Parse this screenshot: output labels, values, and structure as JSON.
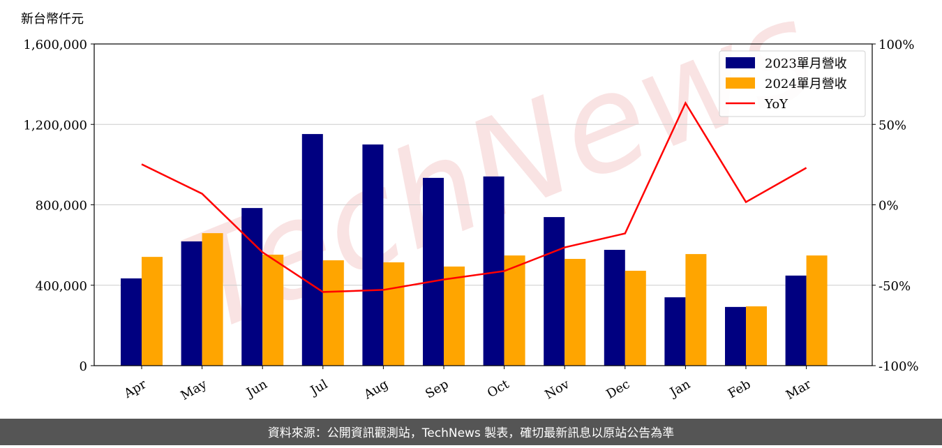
{
  "chart_data": {
    "type": "bar_line",
    "y_label": "新台幣仟元",
    "footer": "資料來源：公開資訊觀測站，TechNews 製表，確切最新訊息以原站公告為準",
    "watermark": "TechNews",
    "categories": [
      "Apr",
      "May",
      "Jun",
      "Jul",
      "Aug",
      "Sep",
      "Oct",
      "Nov",
      "Dec",
      "Jan",
      "Feb",
      "Mar"
    ],
    "series": [
      {
        "name": "2023單月營收",
        "color": "#000080",
        "type": "bar",
        "values": [
          434000,
          618000,
          784000,
          1152000,
          1100000,
          934000,
          941000,
          739000,
          576000,
          340000,
          292000,
          448000
        ]
      },
      {
        "name": "2024單月營收",
        "color": "#ffa500",
        "type": "bar",
        "values": [
          541000,
          659000,
          552000,
          524000,
          514000,
          493000,
          548000,
          531000,
          472000,
          555000,
          295000,
          548000
        ]
      },
      {
        "name": "YoY",
        "color": "#ff0000",
        "type": "line",
        "axis": "y2",
        "values": [
          25.2,
          6.9,
          -29.5,
          -54.2,
          -52.9,
          -46.4,
          -41.2,
          -26.5,
          -17.8,
          63.3,
          1.7,
          23
        ]
      }
    ],
    "ylim": [
      0,
      1600000
    ],
    "yticks": [
      {
        "value": 0,
        "label": "0"
      },
      {
        "value": 400000,
        "label": "400,000"
      },
      {
        "value": 800000,
        "label": "800,000"
      },
      {
        "value": 1200000,
        "label": "1,200,000"
      },
      {
        "value": 1600000,
        "label": "1,600,000"
      }
    ],
    "y2lim": [
      -100,
      100
    ],
    "y2ticks": [
      {
        "value": -100,
        "label": "-100%"
      },
      {
        "value": -50,
        "label": "-50%"
      },
      {
        "value": 0,
        "label": "0%"
      },
      {
        "value": 50,
        "label": "50%"
      },
      {
        "value": 100,
        "label": "100%"
      }
    ],
    "grid": true,
    "legend": "upper right"
  }
}
